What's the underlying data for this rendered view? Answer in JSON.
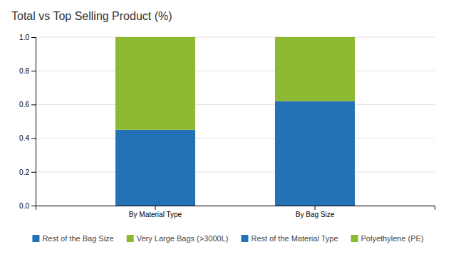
{
  "chart_data": {
    "type": "bar",
    "stacked": true,
    "title": "Total vs Top Selling Product (%)",
    "categories": [
      "By Material Type",
      "By Bag Size"
    ],
    "series": [
      {
        "name": "Rest of the Bag Size",
        "color": "#2472b5",
        "values": [
          null,
          0.62
        ]
      },
      {
        "name": "Very Large Bags (>3000L)",
        "color": "#8db832",
        "values": [
          null,
          0.38
        ]
      },
      {
        "name": "Rest of the Material Type",
        "color": "#2472b5",
        "values": [
          0.45,
          null
        ]
      },
      {
        "name": "Polyethylene (PE)",
        "color": "#8db832",
        "values": [
          0.55,
          null
        ]
      }
    ],
    "ylim": [
      0.0,
      1.0
    ],
    "yticks": [
      {
        "value": 0,
        "label": "0.0"
      },
      0.2,
      0.4,
      0.6,
      0.8,
      {
        "value": 1,
        "label": "1.0"
      }
    ],
    "grid": true,
    "legend": "bottom"
  }
}
